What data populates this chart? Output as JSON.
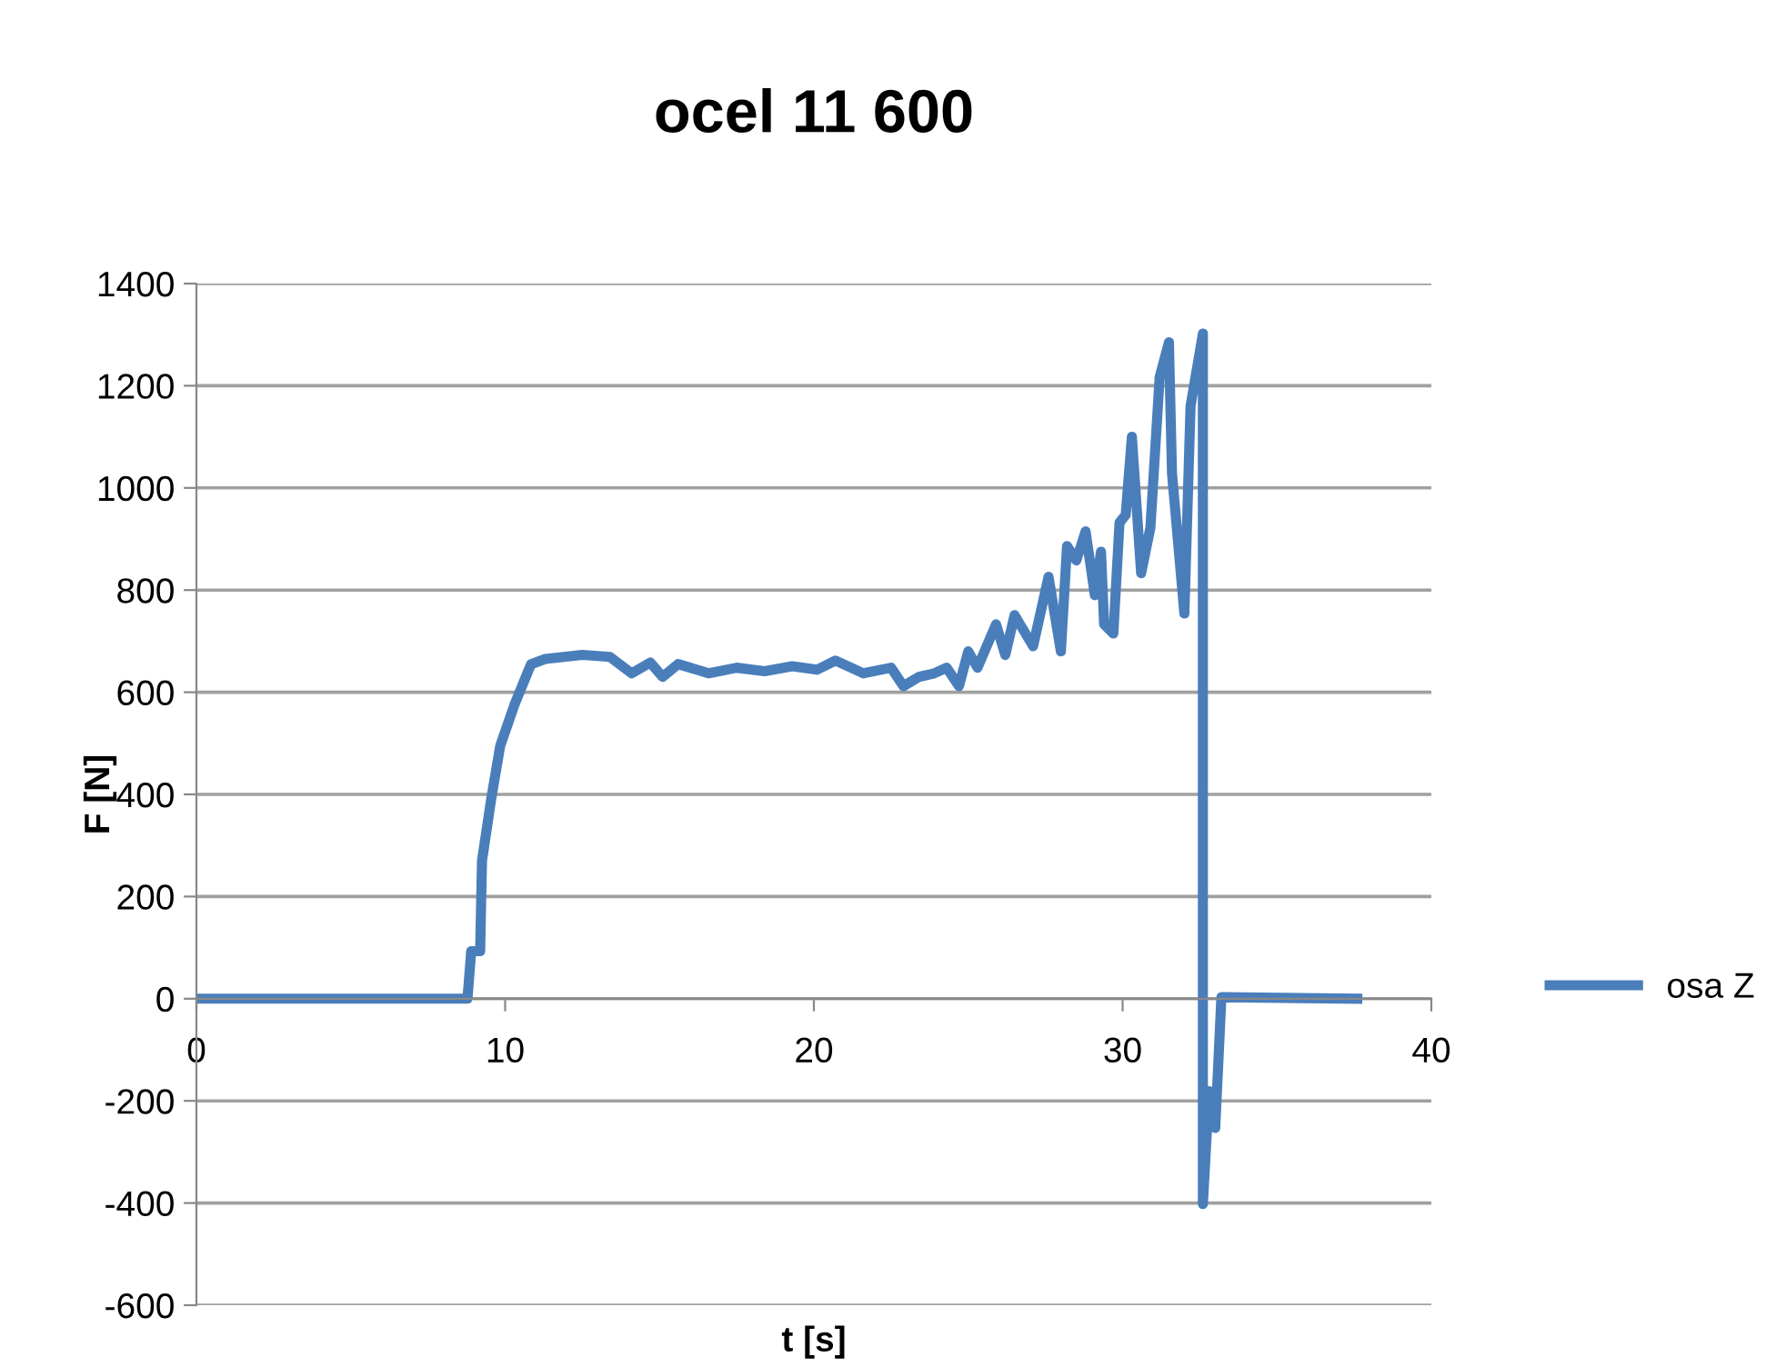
{
  "chart_data": {
    "type": "line",
    "title": "ocel 11 600",
    "xlabel": "t [s]",
    "ylabel": "F [N]",
    "xlim": [
      0,
      40
    ],
    "xticks": [
      0,
      10,
      20,
      30,
      40
    ],
    "ylim": [
      -600,
      1400
    ],
    "yticks": [
      -600,
      -400,
      -200,
      0,
      200,
      400,
      600,
      800,
      1000,
      1200,
      1400
    ],
    "grid": "y",
    "legend": "right",
    "series": [
      {
        "name": "osa Z",
        "color": "#4a7ebb",
        "x": [
          0,
          8.78,
          8.9,
          9.19,
          9.25,
          9.54,
          9.84,
          10.31,
          10.84,
          11.3,
          12.5,
          13.4,
          14.1,
          14.7,
          15.1,
          15.6,
          16.6,
          17.5,
          18.4,
          19.3,
          20.1,
          20.7,
          21.6,
          22.5,
          22.9,
          23.4,
          23.9,
          24.3,
          24.7,
          25.0,
          25.3,
          25.9,
          26.2,
          26.5,
          27.1,
          27.6,
          28.0,
          28.2,
          28.5,
          28.8,
          29.1,
          29.3,
          29.4,
          29.7,
          29.9,
          30.1,
          30.3,
          30.6,
          30.9,
          31.2,
          31.5,
          31.6,
          32.0,
          32.2,
          32.6,
          32.6,
          32.8,
          33.0,
          33.2,
          37.6
        ],
        "values": [
          0,
          0,
          93,
          93,
          270,
          388,
          495,
          577,
          655,
          665,
          673,
          669,
          637,
          658,
          630,
          655,
          637,
          648,
          641,
          651,
          644,
          662,
          637,
          648,
          612,
          630,
          637,
          648,
          612,
          680,
          648,
          733,
          673,
          751,
          690,
          826,
          680,
          886,
          858,
          915,
          790,
          875,
          733,
          715,
          932,
          947,
          1100,
          833,
          922,
          1217,
          1285,
          1028,
          754,
          1160,
          1302,
          -402,
          -181,
          -253,
          3,
          0
        ]
      }
    ]
  }
}
